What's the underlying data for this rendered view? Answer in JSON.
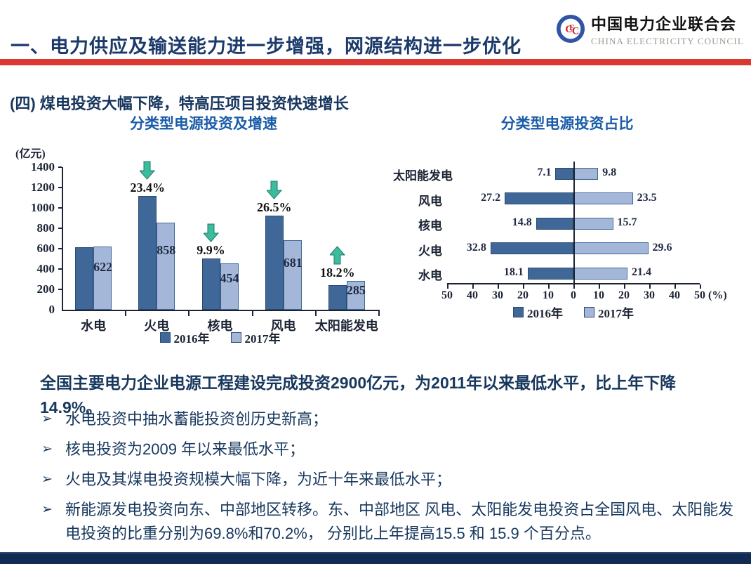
{
  "header": {
    "title": "一、电力供应及输送能力进一步增强，网源结构进一步优化",
    "logo": {
      "monogram": "CEC",
      "org_cn": "中国电力企业联合会",
      "org_en": "CHINA ELECTRICITY COUNCIL"
    }
  },
  "subtitle": "(四)  煤电投资大幅下降，特高压项目投资快速增长",
  "chart_data": [
    {
      "type": "bar",
      "title": "分类型电源投资及增速",
      "ylabel": "(亿元)",
      "ylim": [
        0,
        1400
      ],
      "ytick_step": 200,
      "grid": false,
      "legend_position": "bottom",
      "categories": [
        "水电",
        "火电",
        "核电",
        "风电",
        "太阳能发电"
      ],
      "series": [
        {
          "name": "2016年",
          "color": "#3F6899",
          "values": [
            615,
            1120,
            504,
            926,
            241
          ]
        },
        {
          "name": "2017年",
          "color": "#A4B7D9",
          "values": [
            622,
            858,
            454,
            681,
            285
          ],
          "labels": [
            "622",
            "858",
            "454",
            "681",
            "285"
          ]
        }
      ],
      "annotations": [
        {
          "category": "火电",
          "label": "23.4%",
          "direction": "down"
        },
        {
          "category": "核电",
          "label": "9.9%",
          "direction": "down"
        },
        {
          "category": "风电",
          "label": "26.5%",
          "direction": "down"
        },
        {
          "category": "太阳能发电",
          "label": "18.2%",
          "direction": "up"
        }
      ],
      "arrow_color": "#3CBC9E",
      "arrow_stroke": "#1E7A66"
    },
    {
      "type": "bar",
      "variant": "tornado",
      "title": "分类型电源投资占比",
      "unit_label": "(%)",
      "xlim": [
        -50,
        50
      ],
      "xtick_step": 10,
      "xticklabels": [
        "50",
        "40",
        "30",
        "20",
        "10",
        "0",
        "10",
        "20",
        "30",
        "40",
        "50"
      ],
      "grid": false,
      "legend_position": "bottom",
      "categories": [
        "太阳能发电",
        "风电",
        "核电",
        "火电",
        "水电"
      ],
      "series": [
        {
          "name": "2016年",
          "side": "left",
          "color": "#3F6899",
          "values": [
            7.1,
            27.2,
            14.8,
            32.8,
            18.1
          ],
          "labels": [
            "7.1",
            "27.2",
            "14.8",
            "32.8",
            "18.1"
          ]
        },
        {
          "name": "2017年",
          "side": "right",
          "color": "#A4B7D9",
          "values": [
            9.8,
            23.5,
            15.7,
            29.6,
            21.4
          ],
          "labels": [
            "9.8",
            "23.5",
            "15.7",
            "29.6",
            "21.4"
          ]
        }
      ]
    }
  ],
  "body": {
    "paragraph": "全国主要电力企业电源工程建设完成投资2900亿元，为2011年以来最低水平，比上年下降14.9%。",
    "bullet_marker": "➢",
    "bullets": [
      "水电投资中抽水蓄能投资创历史新高；",
      "核电投资为2009 年以来最低水平；",
      "火电及其煤电投资规模大幅下降，为近十年来最低水平；",
      "新能源发电投资向东、中部地区转移。东、中部地区 风电、太阳能发电投资占全国风电、太阳能发电投资的比重分别为69.8%和70.2%， 分别比上年提高15.5 和 15.9 个百分点。"
    ]
  },
  "colors": {
    "accent_red": "#DC3832",
    "navy_text": "#17375D",
    "chart_title_blue": "#1A5CA8",
    "bar_2016": "#3F6899",
    "bar_2017": "#A4B7D9",
    "arrow_green": "#3CBC9E",
    "footer_navy": "#122B52"
  }
}
